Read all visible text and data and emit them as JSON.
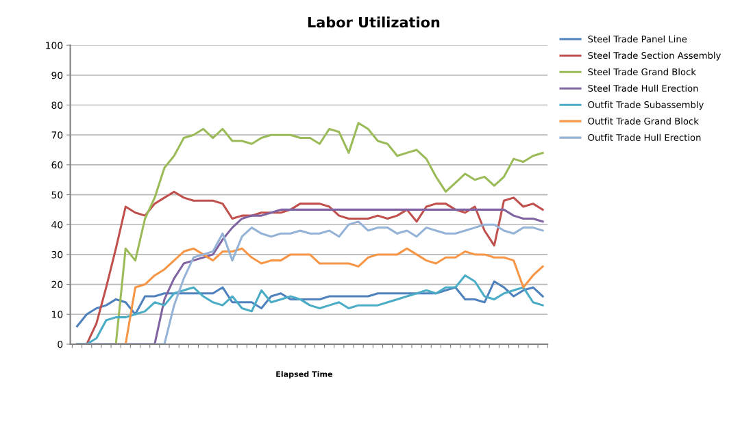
{
  "chart_data": {
    "type": "line",
    "title": "Labor Utilization",
    "xlabel": "Elapsed Time",
    "categories": [
      null,
      null,
      null,
      null,
      null,
      null,
      null,
      null,
      null,
      null,
      null,
      null,
      null,
      null,
      null,
      null,
      null,
      null,
      null,
      null,
      null,
      null,
      null,
      null,
      null,
      null,
      null,
      null,
      null,
      null,
      null,
      null,
      null,
      null,
      null,
      null,
      null,
      null,
      null,
      null,
      null,
      null,
      null,
      null,
      null,
      null,
      null,
      null,
      null
    ],
    "series": [
      {
        "name": "Steel Trade Panel Line",
        "color": "#4f81bd",
        "values": [
          6,
          10,
          12,
          13,
          15,
          14,
          10,
          16,
          16,
          17,
          17,
          17,
          17,
          17,
          17,
          19,
          14,
          14,
          14,
          12,
          16,
          17,
          15,
          15,
          15,
          15,
          16,
          16,
          16,
          16,
          16,
          17,
          17,
          17,
          17,
          17,
          17,
          17,
          18,
          19,
          15,
          15,
          14,
          21,
          19,
          16,
          18,
          19,
          16
        ]
      },
      {
        "name": "Steel Trade Section Assembly",
        "color": "#c0504d",
        "values": [
          0,
          0,
          7,
          19,
          32,
          46,
          44,
          43,
          47,
          49,
          51,
          49,
          48,
          48,
          48,
          47,
          42,
          43,
          43,
          44,
          44,
          44,
          45,
          47,
          47,
          47,
          46,
          43,
          42,
          42,
          42,
          43,
          42,
          43,
          45,
          41,
          46,
          47,
          47,
          45,
          44,
          46,
          38,
          33,
          48,
          49,
          46,
          47,
          45
        ]
      },
      {
        "name": "Steel Trade Grand Block",
        "color": "#9bbb59",
        "values": [
          null,
          null,
          null,
          0,
          0,
          32,
          28,
          42,
          49,
          59,
          63,
          69,
          70,
          72,
          69,
          72,
          68,
          68,
          67,
          69,
          70,
          70,
          70,
          69,
          69,
          67,
          72,
          71,
          64,
          74,
          72,
          68,
          67,
          63,
          64,
          65,
          62,
          56,
          51,
          54,
          57,
          55,
          56,
          53,
          56,
          62,
          61,
          63,
          64
        ]
      },
      {
        "name": "Steel Trade Hull Erection",
        "color": "#8064a2",
        "values": [
          0,
          0,
          0,
          0,
          0,
          0,
          0,
          0,
          0,
          15,
          22,
          27,
          28,
          29,
          30,
          35,
          39,
          42,
          43,
          43,
          44,
          45,
          45,
          45,
          45,
          45,
          45,
          45,
          45,
          45,
          45,
          45,
          45,
          45,
          45,
          45,
          45,
          45,
          45,
          45,
          45,
          45,
          45,
          45,
          45,
          43,
          42,
          42,
          41
        ]
      },
      {
        "name": "Outfit Trade Subassembly",
        "color": "#4bacc6",
        "values": [
          0,
          0,
          2,
          8,
          9,
          9,
          10,
          11,
          14,
          13,
          17,
          18,
          19,
          16,
          14,
          13,
          16,
          12,
          11,
          18,
          14,
          15,
          16,
          15,
          13,
          12,
          13,
          14,
          12,
          13,
          13,
          13,
          14,
          15,
          16,
          17,
          18,
          17,
          19,
          19,
          23,
          21,
          16,
          15,
          17,
          18,
          19,
          14,
          13
        ]
      },
      {
        "name": "Outfit Trade Grand Block",
        "color": "#f79646",
        "values": [
          null,
          null,
          null,
          null,
          0,
          0,
          19,
          20,
          23,
          25,
          28,
          31,
          32,
          30,
          28,
          31,
          31,
          32,
          29,
          27,
          28,
          28,
          30,
          30,
          30,
          27,
          27,
          27,
          27,
          26,
          29,
          30,
          30,
          30,
          32,
          30,
          28,
          27,
          29,
          29,
          31,
          30,
          30,
          29,
          29,
          28,
          19,
          23,
          26
        ]
      },
      {
        "name": "Outfit Trade Hull Erection",
        "color": "#95b3d7",
        "values": [
          0,
          0,
          0,
          0,
          0,
          0,
          0,
          0,
          0,
          0,
          13,
          22,
          29,
          30,
          31,
          37,
          28,
          36,
          39,
          37,
          36,
          37,
          37,
          38,
          37,
          37,
          38,
          36,
          40,
          41,
          38,
          39,
          39,
          37,
          38,
          36,
          39,
          38,
          37,
          37,
          38,
          39,
          40,
          40,
          38,
          37,
          39,
          39,
          38
        ]
      }
    ],
    "ylim": [
      0,
      100
    ],
    "yticks": [
      0,
      10,
      20,
      30,
      40,
      50,
      60,
      70,
      80,
      90,
      100
    ],
    "grid": "y",
    "legend": "right",
    "tick_labels": "y",
    "marker": "none",
    "line_style": "solid"
  }
}
